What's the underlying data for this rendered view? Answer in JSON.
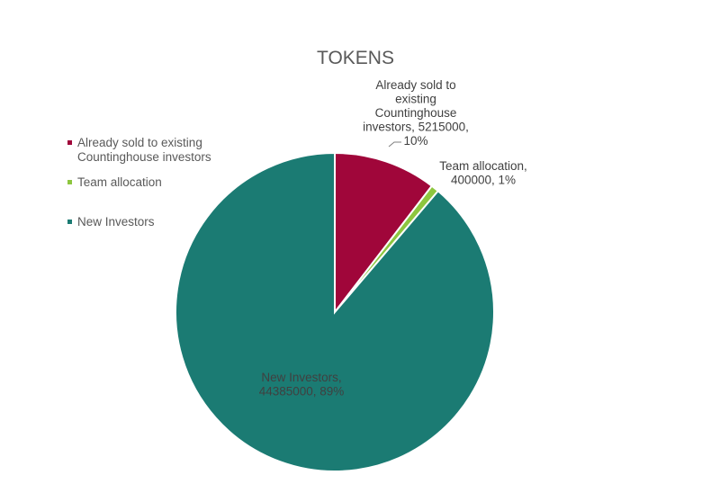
{
  "chart_data": {
    "type": "pie",
    "title": "TOKENS",
    "categories": [
      "Already sold to existing Countinghouse investors",
      "Team allocation",
      "New Investors"
    ],
    "values": [
      5215000,
      400000,
      44385000
    ],
    "percents": [
      "10%",
      "1%",
      "89%"
    ],
    "colors": [
      "#A0063A",
      "#8DC63F",
      "#1B7B73"
    ],
    "legend": {
      "placement": "left",
      "entries": [
        [
          "Already sold to existing",
          "Countinghouse investors"
        ],
        [
          "Team allocation"
        ],
        [
          "New Investors"
        ]
      ]
    },
    "data_labels": [
      [
        "Already sold to",
        "existing",
        "Countinghouse",
        "investors, 5215000,",
        "10%"
      ],
      [
        "Team allocation,",
        "400000, 1%"
      ],
      [
        "New Investors,",
        "44385000, 89%"
      ]
    ]
  }
}
